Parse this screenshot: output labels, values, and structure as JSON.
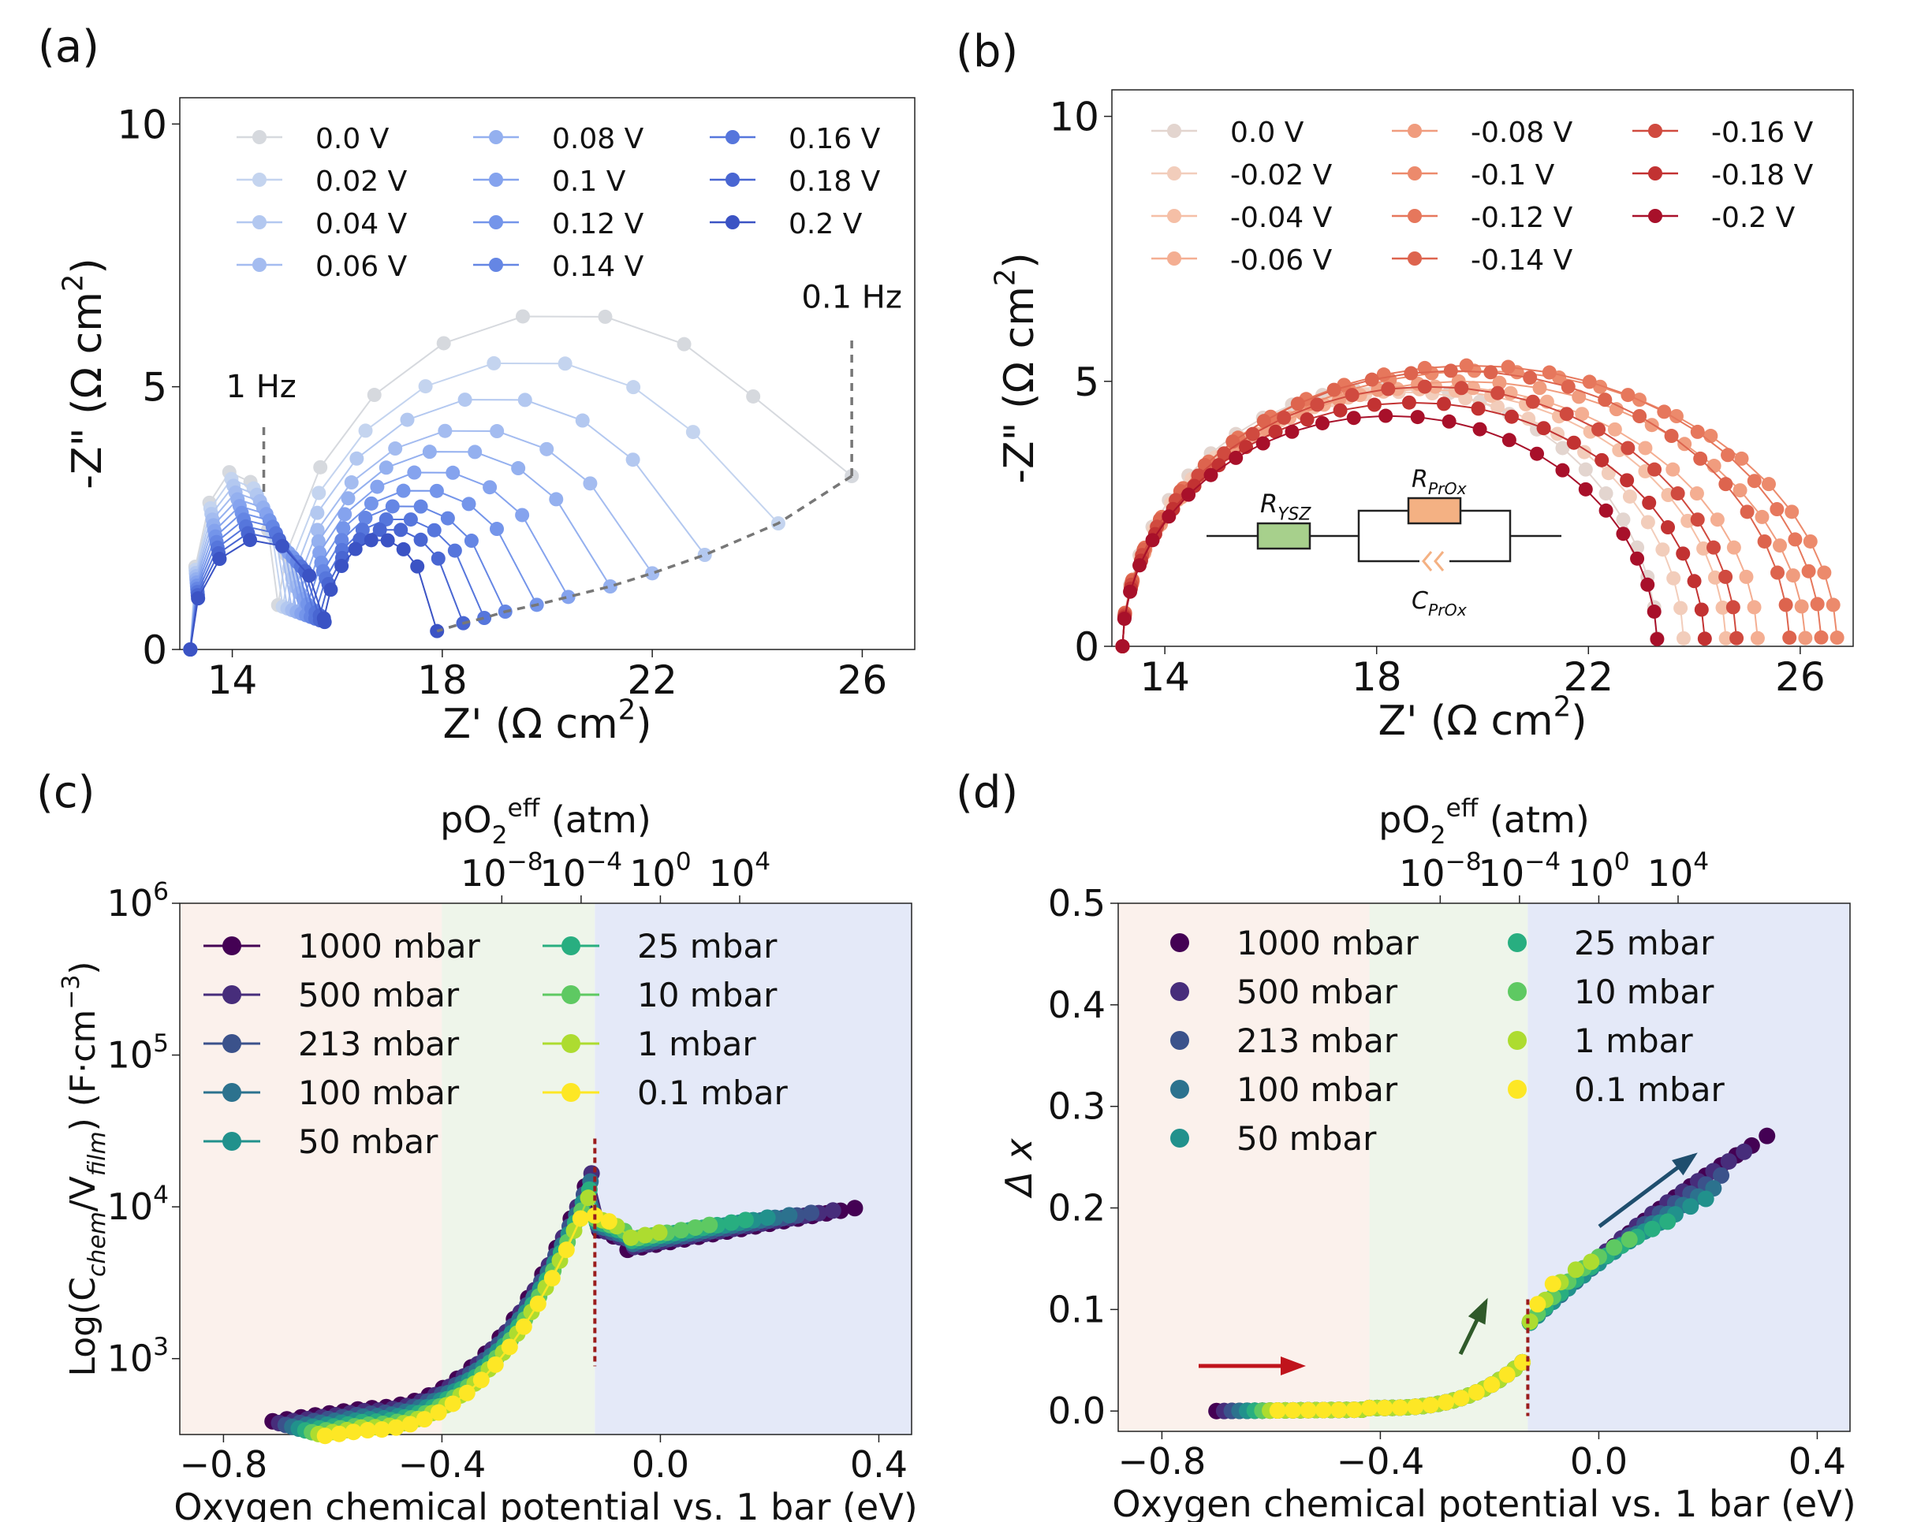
{
  "panels": {
    "a": {
      "label": "(a)"
    },
    "b": {
      "label": "(b)"
    },
    "c": {
      "label": "(c)"
    },
    "d": {
      "label": "(d)"
    }
  },
  "annotations": {
    "a_low": "1 Hz",
    "a_high": "0.1 Hz",
    "circuit_r1": "R",
    "circuit_r1_sub": "YSZ",
    "circuit_r2": "R",
    "circuit_r2_sub": "PrO",
    "circuit_c": "C",
    "circuit_c_sub": "PrO",
    "circuit_sub_x": "x"
  },
  "colors": {
    "region_low": "#fbf1ec",
    "region_mid": "#eef5ea",
    "region_high": "#e4e9f8",
    "dashed": "#777777",
    "vline": "#9b1c1c",
    "arrow_red": "#c0141c",
    "arrow_green": "#2f5a2a",
    "arrow_blue": "#1f4e6e",
    "circuit_r1": "#a7d08c",
    "circuit_r2": "#f4b183",
    "circuit_c": "#f4b183"
  },
  "chart_data": [
    {
      "type": "line",
      "panel": "a",
      "xlabel": "Z' (Ω cm",
      "xlabel_sup": "2",
      "xlabel_end": ")",
      "ylabel": "-Z\" (Ω cm",
      "ylabel_sup": "2",
      "ylabel_end": ")",
      "xlim": [
        13,
        27
      ],
      "ylim": [
        0,
        10.5
      ],
      "xticks": [
        14,
        18,
        22,
        26
      ],
      "yticks": [
        0,
        5,
        10
      ],
      "legend_placement": "top",
      "series": [
        {
          "name": "0.0 V",
          "color": "#d6d9de",
          "x0": 13.2,
          "x1": 25.8,
          "peak": 6.4,
          "end_y": 3.3,
          "loop_r": 0.9
        },
        {
          "name": "0.02 V",
          "color": "#c4d4ef",
          "x0": 13.2,
          "x1": 24.4,
          "peak": 5.5,
          "end_y": 2.4,
          "loop_r": 0.85
        },
        {
          "name": "0.04 V",
          "color": "#b3c8f0",
          "x0": 13.2,
          "x1": 23.0,
          "peak": 4.8,
          "end_y": 1.8,
          "loop_r": 0.8
        },
        {
          "name": "0.06 V",
          "color": "#a4bcf0",
          "x0": 13.2,
          "x1": 22.0,
          "peak": 4.2,
          "end_y": 1.45,
          "loop_r": 0.78
        },
        {
          "name": "0.08 V",
          "color": "#94b0ef",
          "x0": 13.2,
          "x1": 21.2,
          "peak": 3.8,
          "end_y": 1.2,
          "loop_r": 0.75
        },
        {
          "name": "0.1 V",
          "color": "#85a3ee",
          "x0": 13.2,
          "x1": 20.4,
          "peak": 3.4,
          "end_y": 1.0,
          "loop_r": 0.72
        },
        {
          "name": "0.12 V",
          "color": "#7495ea",
          "x0": 13.2,
          "x1": 19.8,
          "peak": 3.05,
          "end_y": 0.85,
          "loop_r": 0.7
        },
        {
          "name": "0.14 V",
          "color": "#6586e4",
          "x0": 13.2,
          "x1": 19.2,
          "peak": 2.75,
          "end_y": 0.72,
          "loop_r": 0.68
        },
        {
          "name": "0.16 V",
          "color": "#5676dc",
          "x0": 13.2,
          "x1": 18.8,
          "peak": 2.5,
          "end_y": 0.6,
          "loop_r": 0.66
        },
        {
          "name": "0.18 V",
          "color": "#4966d2",
          "x0": 13.2,
          "x1": 18.4,
          "peak": 2.3,
          "end_y": 0.5,
          "loop_r": 0.64
        },
        {
          "name": "0.2 V",
          "color": "#3b53c4",
          "x0": 13.2,
          "x1": 17.9,
          "peak": 2.1,
          "end_y": 0.35,
          "loop_r": 0.62
        }
      ]
    },
    {
      "type": "line",
      "panel": "b",
      "xlabel": "Z' (Ω cm",
      "xlabel_sup": "2",
      "xlabel_end": ")",
      "ylabel": "-Z\" (Ω cm",
      "ylabel_sup": "2",
      "ylabel_end": ")",
      "xlim": [
        13,
        27
      ],
      "ylim": [
        0,
        10.5
      ],
      "xticks": [
        14,
        18,
        22,
        26
      ],
      "yticks": [
        0,
        5,
        10
      ],
      "legend_placement": "top",
      "series": [
        {
          "name": "0.0 V",
          "color": "#e3d5cf",
          "x0": 13.2,
          "x1": 23.3,
          "peak": 4.9
        },
        {
          "name": "-0.02 V",
          "color": "#f2cdbb",
          "x0": 13.2,
          "x1": 23.8,
          "peak": 4.8
        },
        {
          "name": "-0.04 V",
          "color": "#f5bfa6",
          "x0": 13.2,
          "x1": 24.6,
          "peak": 4.85
        },
        {
          "name": "-0.06 V",
          "color": "#f4ae92",
          "x0": 13.2,
          "x1": 25.2,
          "peak": 4.9
        },
        {
          "name": "-0.08 V",
          "color": "#f09c7e",
          "x0": 13.2,
          "x1": 26.1,
          "peak": 5.0
        },
        {
          "name": "-0.1 V",
          "color": "#ec8a6c",
          "x0": 13.2,
          "x1": 26.7,
          "peak": 5.2
        },
        {
          "name": "-0.12 V",
          "color": "#e6775c",
          "x0": 13.2,
          "x1": 26.4,
          "peak": 5.3
        },
        {
          "name": "-0.14 V",
          "color": "#dd644e",
          "x0": 13.2,
          "x1": 25.8,
          "peak": 5.2
        },
        {
          "name": "-0.16 V",
          "color": "#d04a3f",
          "x0": 13.2,
          "x1": 24.8,
          "peak": 4.9
        },
        {
          "name": "-0.18 V",
          "color": "#c23232",
          "x0": 13.2,
          "x1": 24.2,
          "peak": 4.6
        },
        {
          "name": "-0.2 V",
          "color": "#a8102a",
          "x0": 13.2,
          "x1": 23.3,
          "peak": 4.35
        }
      ]
    },
    {
      "type": "line",
      "panel": "c",
      "xlabel": "Oxygen chemical potential vs. 1 bar (eV)",
      "ylabel": "Log(C",
      "ylabel_sub1": "chem",
      "ylabel_mid": "/V",
      "ylabel_sub2": "film",
      "ylabel_end": ") (F·cm",
      "ylabel_sup": "−3",
      "ylabel_close": ")",
      "top_xlabel": "pO",
      "top_xlabel_sub": "2",
      "top_xlabel_sup": "eff",
      "top_xlabel_end": " (atm)",
      "xlim": [
        -0.88,
        0.46
      ],
      "ylim_log10": [
        2.5,
        6
      ],
      "xticks": [
        -0.8,
        -0.4,
        0.0,
        0.4
      ],
      "xtick_labels": [
        "−0.8",
        "−0.4",
        "0.0",
        "0.4"
      ],
      "yticks_log10": [
        3,
        4,
        5,
        6
      ],
      "top_xticks_exp": [
        -8,
        -4,
        0,
        4
      ],
      "region_bounds": [
        -0.4,
        -0.12
      ],
      "peak_x": -0.12,
      "legend_placement": "top-left",
      "series": [
        {
          "name": "1000 mbar",
          "color": "#440154",
          "x_end": 0.36
        },
        {
          "name": "500 mbar",
          "color": "#472d7b",
          "x_end": 0.32
        },
        {
          "name": "213 mbar",
          "color": "#3b528b",
          "x_end": 0.28
        },
        {
          "name": "100 mbar",
          "color": "#2c728e",
          "x_end": 0.24
        },
        {
          "name": "50 mbar",
          "color": "#21918c",
          "x_end": 0.2
        },
        {
          "name": "25 mbar",
          "color": "#28ae80",
          "x_end": 0.16
        },
        {
          "name": "10 mbar",
          "color": "#5ec962",
          "x_end": 0.1
        },
        {
          "name": "1 mbar",
          "color": "#addc30",
          "x_end": 0.0
        },
        {
          "name": "0.1 mbar",
          "color": "#fde725",
          "x_end": -0.08
        }
      ]
    },
    {
      "type": "scatter",
      "panel": "d",
      "xlabel": "Oxygen chemical potential vs. 1 bar (eV)",
      "ylabel": "Δ x",
      "top_xlabel": "pO",
      "top_xlabel_sub": "2",
      "top_xlabel_sup": "eff",
      "top_xlabel_end": " (atm)",
      "xlim": [
        -0.88,
        0.46
      ],
      "ylim": [
        -0.02,
        0.5
      ],
      "xticks": [
        -0.8,
        -0.4,
        0.0,
        0.4
      ],
      "xtick_labels": [
        "−0.8",
        "−0.4",
        "0.0",
        "0.4"
      ],
      "yticks": [
        0.0,
        0.1,
        0.2,
        0.3,
        0.4,
        0.5
      ],
      "ytick_labels": [
        "0.0",
        "0.1",
        "0.2",
        "0.3",
        "0.4",
        "0.5"
      ],
      "top_xticks_exp": [
        -8,
        -4,
        0,
        4
      ],
      "region_bounds": [
        -0.42,
        -0.13
      ],
      "step_x": -0.13,
      "legend_placement": "top-left",
      "series": [
        {
          "name": "1000 mbar",
          "color": "#440154",
          "x_end": 0.32,
          "y_end": 0.275
        },
        {
          "name": "500 mbar",
          "color": "#472d7b",
          "x_end": 0.28,
          "y_end": 0.26
        },
        {
          "name": "213 mbar",
          "color": "#3b528b",
          "x_end": 0.25,
          "y_end": 0.24
        },
        {
          "name": "100 mbar",
          "color": "#2c728e",
          "x_end": 0.23,
          "y_end": 0.225
        },
        {
          "name": "50 mbar",
          "color": "#21918c",
          "x_end": 0.2,
          "y_end": 0.21
        },
        {
          "name": "25 mbar",
          "color": "#28ae80",
          "x_end": 0.14,
          "y_end": 0.19
        },
        {
          "name": "10 mbar",
          "color": "#5ec962",
          "x_end": 0.08,
          "y_end": 0.175
        },
        {
          "name": "1 mbar",
          "color": "#addc30",
          "x_end": 0.0,
          "y_end": 0.15
        },
        {
          "name": "0.1 mbar",
          "color": "#fde725",
          "x_end": -0.06,
          "y_end": 0.13
        }
      ]
    }
  ]
}
